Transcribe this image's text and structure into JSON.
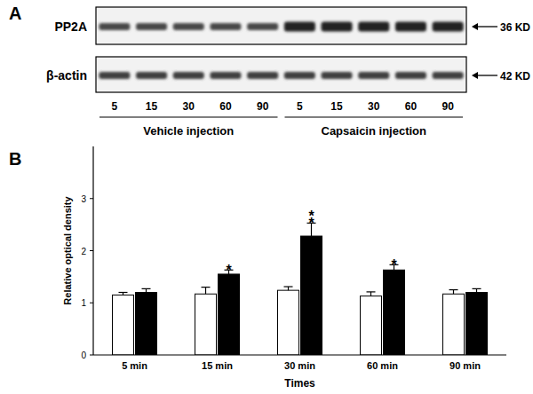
{
  "figure": {
    "panel_labels": [
      "A",
      "B"
    ]
  },
  "blot": {
    "rows": [
      {
        "label": "PP2A",
        "size": "36 KD"
      },
      {
        "label": "β-actin",
        "size": "42 KD"
      }
    ],
    "lanes": [
      5,
      15,
      30,
      60,
      90,
      5,
      15,
      30,
      60,
      90
    ],
    "groups": [
      "Vehicle injection",
      "Capsaicin injection"
    ]
  },
  "chart_data": {
    "type": "bar",
    "x_label": "Times",
    "y_label": "Relative optical density",
    "categories": [
      "5 min",
      "15 min",
      "30 min",
      "60 min",
      "90 min"
    ],
    "series": [
      {
        "name": "Vehicle injection",
        "color": "#ffffff",
        "values": [
          1.15,
          1.17,
          1.24,
          1.13,
          1.17
        ],
        "errors": [
          0.05,
          0.13,
          0.07,
          0.08,
          0.08
        ]
      },
      {
        "name": "Capsaicin injection",
        "color": "#000000",
        "values": [
          1.2,
          1.55,
          2.28,
          1.63,
          1.2
        ],
        "errors": [
          0.07,
          0.08,
          0.25,
          0.1,
          0.07
        ],
        "significance": [
          null,
          "*",
          "**",
          "*",
          null
        ]
      }
    ],
    "ylim": [
      0,
      4
    ],
    "yticks": [
      0,
      1,
      2,
      3
    ],
    "grid": false
  }
}
